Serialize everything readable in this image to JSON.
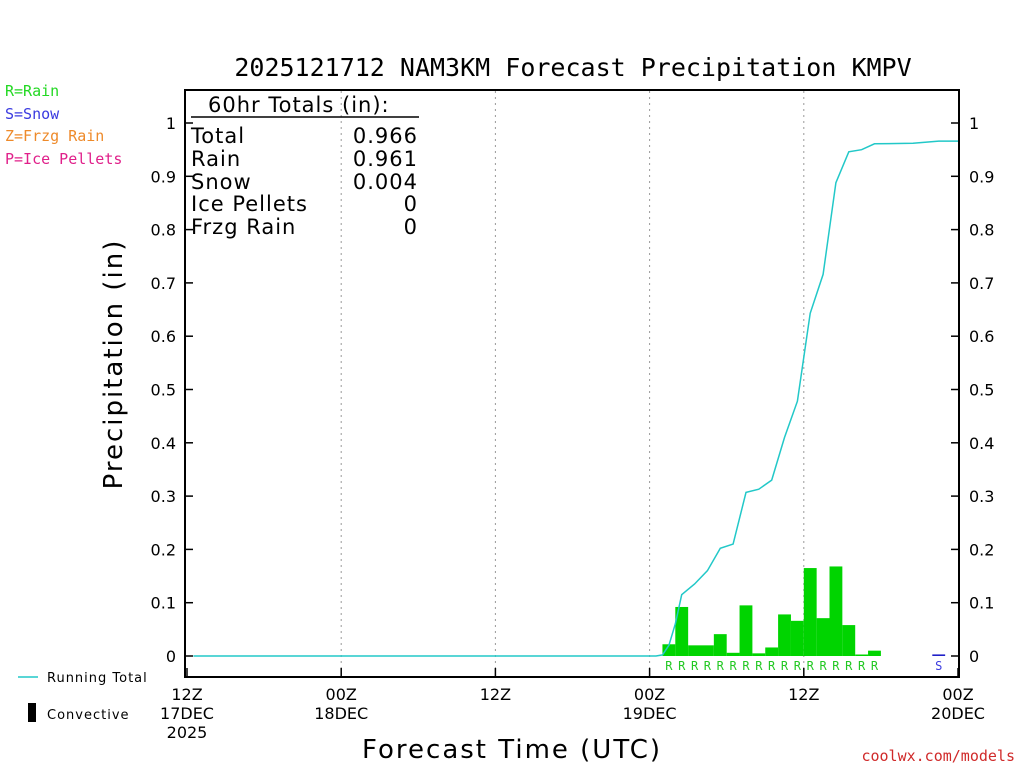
{
  "chart_data": {
    "type": "bar",
    "title": "2025121712 NAM3KM Forecast Precipitation KMPV",
    "xlabel": "Forecast Time (UTC)",
    "ylabel": "Precipitation (in)",
    "ylim": [
      0,
      1.05
    ],
    "y_ticks": [
      "0",
      "0.1",
      "0.2",
      "0.3",
      "0.4",
      "0.5",
      "0.6",
      "0.7",
      "0.8",
      "0.9",
      "1"
    ],
    "x_ticks": [
      {
        "hour": 0,
        "line1": "12Z",
        "line2": "17DEC",
        "line3": "2025"
      },
      {
        "hour": 12,
        "line1": "00Z",
        "line2": "18DEC",
        "line3": ""
      },
      {
        "hour": 24,
        "line1": "12Z",
        "line2": "",
        "line3": ""
      },
      {
        "hour": 36,
        "line1": "00Z",
        "line2": "19DEC",
        "line3": ""
      },
      {
        "hour": 48,
        "line1": "12Z",
        "line2": "",
        "line3": ""
      },
      {
        "hour": 60,
        "line1": "00Z",
        "line2": "20DEC",
        "line3": ""
      }
    ],
    "bars": [
      {
        "hour": 37.5,
        "value": 0.022,
        "type": "R"
      },
      {
        "hour": 38.5,
        "value": 0.092,
        "type": "R"
      },
      {
        "hour": 39.5,
        "value": 0.02,
        "type": "R"
      },
      {
        "hour": 40.5,
        "value": 0.02,
        "type": "R"
      },
      {
        "hour": 41.5,
        "value": 0.041,
        "type": "R"
      },
      {
        "hour": 42.5,
        "value": 0.006,
        "type": "R"
      },
      {
        "hour": 43.5,
        "value": 0.095,
        "type": "R"
      },
      {
        "hour": 44.5,
        "value": 0.005,
        "type": "R"
      },
      {
        "hour": 45.5,
        "value": 0.016,
        "type": "R"
      },
      {
        "hour": 46.5,
        "value": 0.078,
        "type": "R"
      },
      {
        "hour": 47.5,
        "value": 0.066,
        "type": "R"
      },
      {
        "hour": 48.5,
        "value": 0.165,
        "type": "R"
      },
      {
        "hour": 49.5,
        "value": 0.071,
        "type": "R"
      },
      {
        "hour": 50.5,
        "value": 0.168,
        "type": "R"
      },
      {
        "hour": 51.5,
        "value": 0.058,
        "type": "R"
      },
      {
        "hour": 52.5,
        "value": 0.002,
        "type": "R"
      },
      {
        "hour": 53.5,
        "value": 0.01,
        "type": "R"
      },
      {
        "hour": 58.5,
        "value": 0.003,
        "type": "S"
      }
    ],
    "running_total": {
      "name": "Running Total",
      "color": "#22c8c8",
      "points": [
        [
          0.5,
          0
        ],
        [
          36.5,
          0
        ],
        [
          37,
          0.002
        ],
        [
          37.5,
          0.02
        ],
        [
          38,
          0.06
        ],
        [
          38.5,
          0.115
        ],
        [
          39.5,
          0.135
        ],
        [
          40.5,
          0.16
        ],
        [
          41.5,
          0.202
        ],
        [
          42.5,
          0.21
        ],
        [
          43.5,
          0.307
        ],
        [
          44.5,
          0.313
        ],
        [
          45.5,
          0.33
        ],
        [
          46.5,
          0.41
        ],
        [
          47.5,
          0.478
        ],
        [
          48.5,
          0.643
        ],
        [
          49.5,
          0.716
        ],
        [
          50.5,
          0.888
        ],
        [
          51.5,
          0.946
        ],
        [
          52.5,
          0.95
        ],
        [
          53.5,
          0.961
        ],
        [
          56.5,
          0.962
        ],
        [
          58.5,
          0.966
        ],
        [
          60,
          0.966
        ]
      ]
    },
    "totals": {
      "heading": "60hr Totals (in):",
      "rows": [
        {
          "label": "Total",
          "value": "0.966"
        },
        {
          "label": "Rain",
          "value": "0.961"
        },
        {
          "label": "Snow",
          "value": "0.004"
        },
        {
          "label": "Ice Pellets",
          "value": "0"
        },
        {
          "label": "Frzg Rain",
          "value": "0"
        }
      ]
    },
    "legend": {
      "types": [
        {
          "text": "R=Rain",
          "color": "#22d822"
        },
        {
          "text": "S=Snow",
          "color": "#3a3ae0"
        },
        {
          "text": "Z=Frzg Rain",
          "color": "#ee8a2a"
        },
        {
          "text": "P=Ice Pellets",
          "color": "#e0208a"
        }
      ],
      "running_total_label": "Running Total",
      "convective_label": "Convective"
    },
    "colors": {
      "rain": "#00d400",
      "snow": "#2020c8",
      "running_total": "#22c8c8"
    }
  },
  "credit": "coolwx.com/models"
}
